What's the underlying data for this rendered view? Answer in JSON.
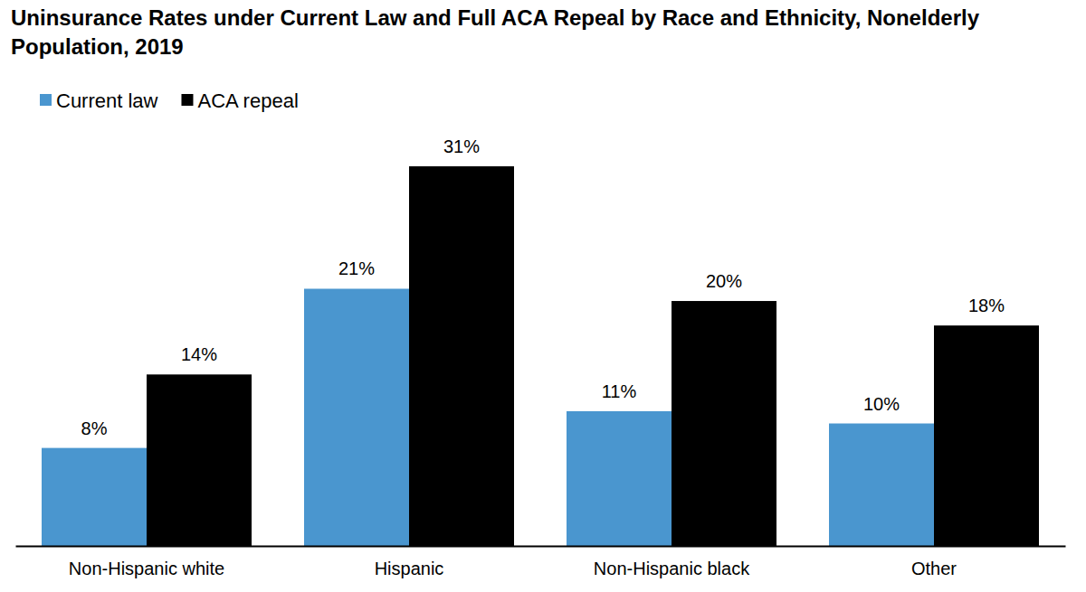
{
  "chart_data": {
    "type": "bar",
    "title": "Uninsurance Rates under Current Law and Full ACA Repeal by Race and Ethnicity, Nonelderly Population, 2019",
    "categories": [
      "Non-Hispanic white",
      "Hispanic",
      "Non-Hispanic black",
      "Other"
    ],
    "series": [
      {
        "name": "Current law",
        "color": "#4a96cf",
        "values": [
          8,
          21,
          11,
          10
        ],
        "value_labels": [
          "8%",
          "21%",
          "11%",
          "10%"
        ]
      },
      {
        "name": "ACA repeal",
        "color": "#000000",
        "values": [
          14,
          31,
          20,
          18
        ],
        "value_labels": [
          "14%",
          "31%",
          "20%",
          "18%"
        ]
      }
    ],
    "ylim": [
      0,
      31
    ],
    "data_labels": true,
    "tick_labels": "x",
    "legend": "top-left",
    "grid": false
  }
}
